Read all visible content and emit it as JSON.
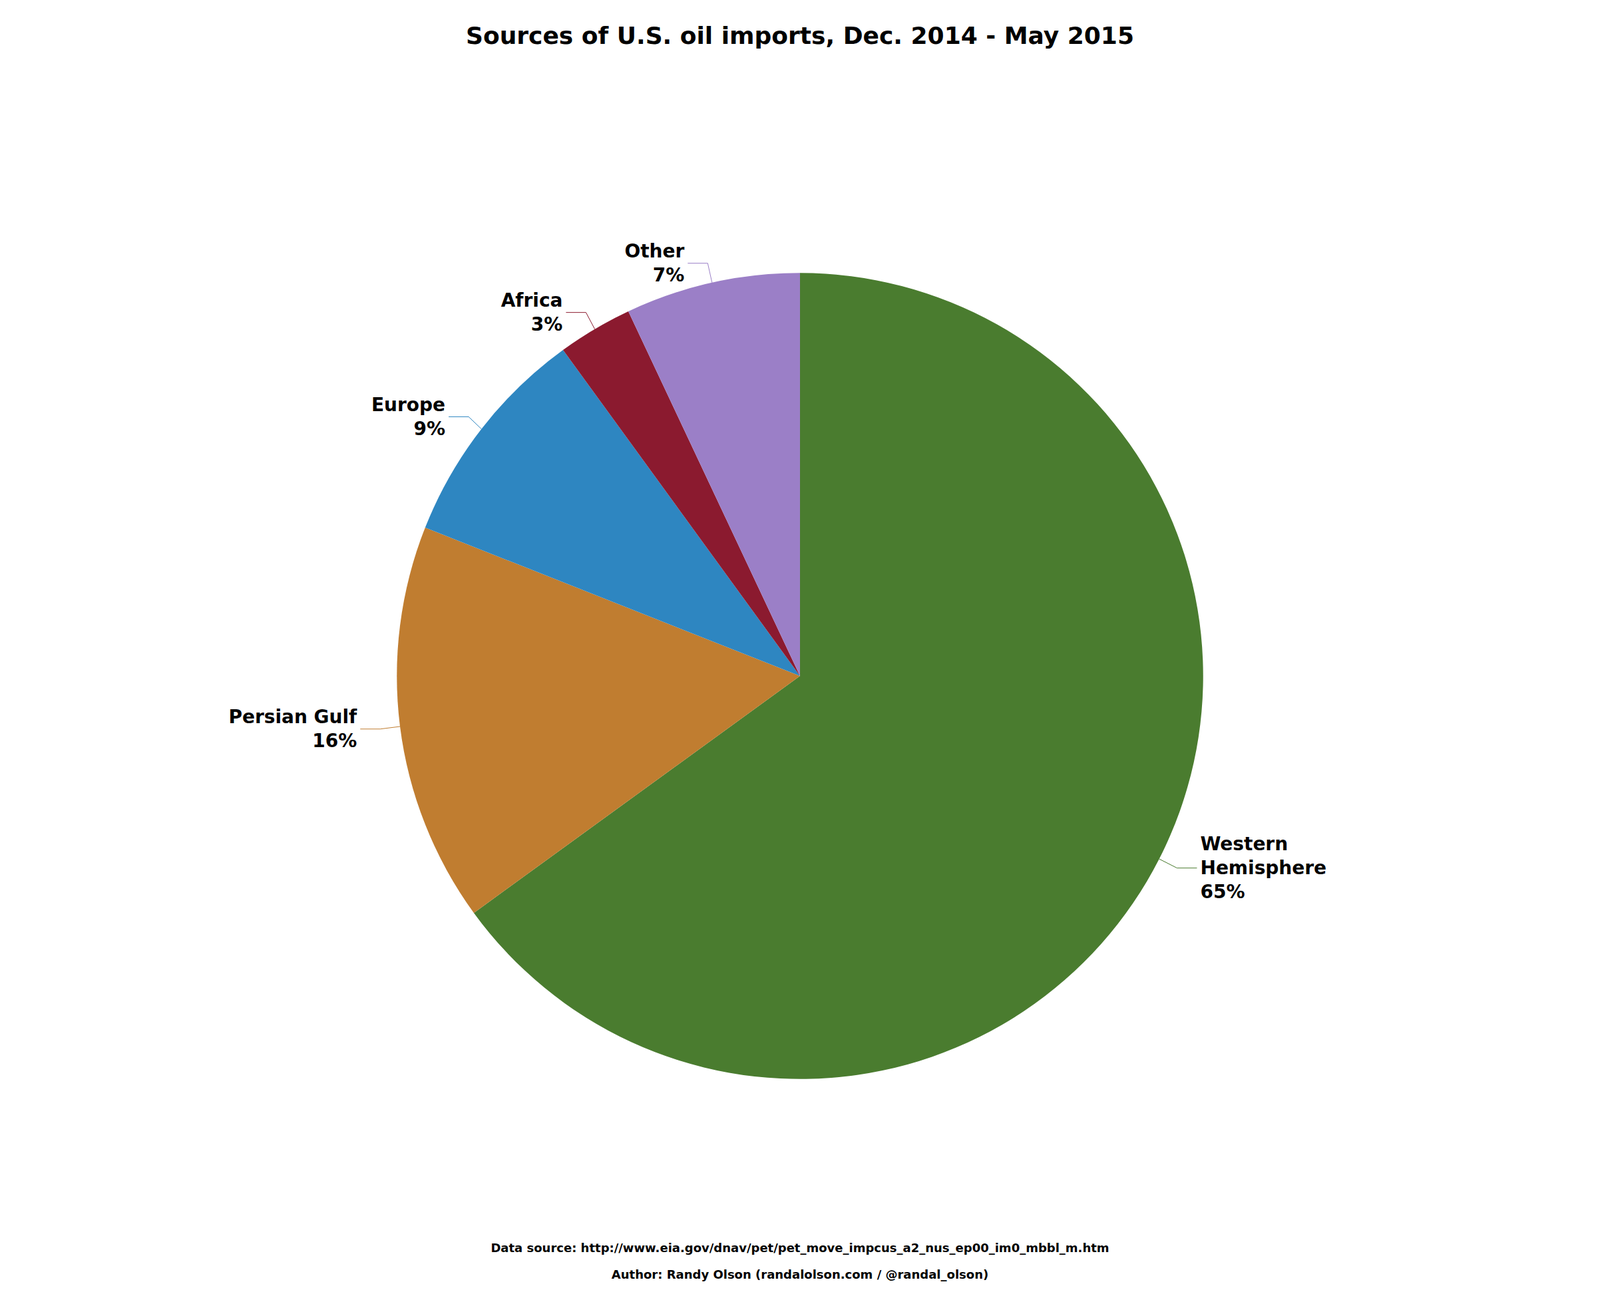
{
  "chart_data": {
    "type": "pie",
    "title": "Sources of U.S. oil imports, Dec. 2014 - May 2015",
    "categories": [
      "Western\nHemisphere",
      "Persian Gulf",
      "Europe",
      "Africa",
      "Other"
    ],
    "values": [
      65,
      16,
      9,
      3,
      7
    ],
    "value_labels": [
      "65%",
      "16%",
      "9%",
      "3%",
      "7%"
    ],
    "colors": [
      "#4a7c2f",
      "#c07d30",
      "#2e86c1",
      "#8b1a2f",
      "#9b7fc7"
    ],
    "annotations": [
      "Data source: http://www.eia.gov/dnav/pet/pet_move_impcus_a2_nus_ep00_im0_mbbl_m.htm",
      "Author: Randy Olson (randalolson.com / @randal_olson)"
    ]
  }
}
